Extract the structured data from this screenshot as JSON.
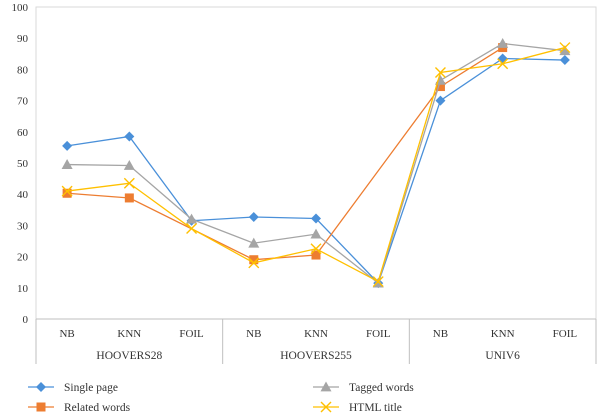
{
  "chart_data": {
    "type": "line",
    "title": "",
    "xlabel": "",
    "ylabel": "",
    "ylim": [
      0,
      100
    ],
    "yticks": [
      0,
      10,
      20,
      30,
      40,
      50,
      60,
      70,
      80,
      90,
      100
    ],
    "grid": false,
    "legend_position": "bottom",
    "groups": [
      {
        "label": "HOOVERS28",
        "categories": [
          "NB",
          "KNN",
          "FOIL"
        ]
      },
      {
        "label": "HOOVERS255",
        "categories": [
          "NB",
          "KNN",
          "FOIL"
        ]
      },
      {
        "label": "UNIV6",
        "categories": [
          "NB",
          "KNN",
          "FOIL"
        ]
      }
    ],
    "series": [
      {
        "name": "Single page",
        "color": "#4a90d9",
        "marker": "diamond",
        "values": [
          55.5,
          58.5,
          31.5,
          32.7,
          32.2,
          11.5,
          70,
          83.5,
          83
        ]
      },
      {
        "name": "Related words",
        "color": "#ed7d31",
        "marker": "square",
        "values": [
          40.3,
          38.8,
          null,
          19,
          20.5,
          null,
          74.5,
          87,
          null
        ]
      },
      {
        "name": "Tagged words",
        "color": "#a5a5a5",
        "marker": "triangle",
        "values": [
          49.5,
          49.2,
          32,
          24.3,
          27.2,
          11.5,
          76.5,
          88.3,
          86
        ]
      },
      {
        "name": "HTML title",
        "color": "#ffc000",
        "marker": "x",
        "values": [
          41,
          43.5,
          29,
          18,
          22.5,
          12,
          79,
          81.8,
          87
        ]
      }
    ]
  }
}
